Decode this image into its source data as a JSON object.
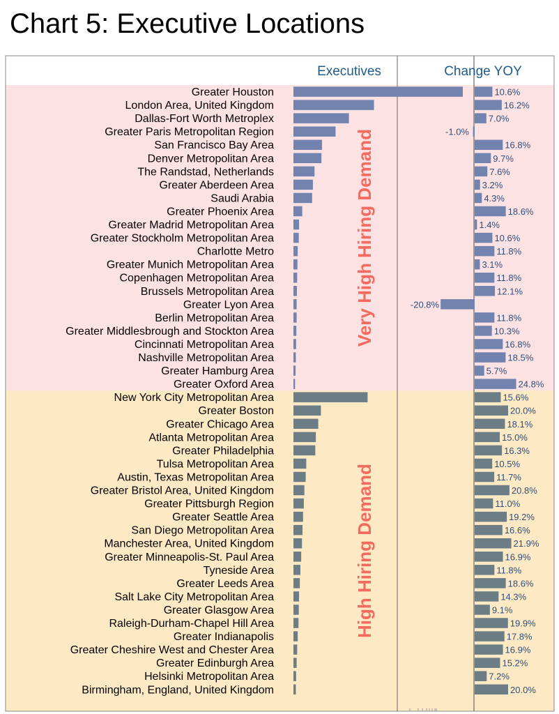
{
  "title": "Chart 5: Executive Locations",
  "chart_data": {
    "type": "bar",
    "title": "Chart 5: Executive Locations",
    "panels": [
      "Executives",
      "Change YOY"
    ],
    "colors": {
      "very_high_bg": "#fde2e4",
      "high_bg": "#fde9c4",
      "very_high_bar": "#7383b0",
      "high_bar": "#6c7d86",
      "group_label": "#f26b5e",
      "header": "#1f5a8a"
    },
    "groups": [
      {
        "name": "Very High Hiring Demand",
        "categories": [
          "Greater Houston",
          "London Area, United Kingdom",
          "Dallas-Fort Worth Metroplex",
          "Greater Paris Metropolitan Region",
          "San Francisco Bay Area",
          "Denver Metropolitan Area",
          "The Randstad, Netherlands",
          "Greater Aberdeen Area",
          "Saudi Arabia",
          "Greater Phoenix Area",
          "Greater Madrid Metropolitan Area",
          "Greater Stockholm Metropolitan Area",
          "Charlotte Metro",
          "Greater Munich Metropolitan Area",
          "Copenhagen Metropolitan Area",
          "Brussels Metropolitan Area",
          "Greater Lyon Area",
          "Berlin Metropolitan Area",
          "Greater Middlesbrough and Stockton Area",
          "Cincinnati Metropolitan Area",
          "Nashville Metropolitan Area",
          "Greater Hamburg Area",
          "Greater Oxford Area"
        ],
        "executives": [
          635,
          302,
          208,
          158,
          107,
          105,
          79,
          73,
          70,
          33,
          21,
          20,
          16,
          15,
          14,
          13,
          12,
          12,
          11,
          10,
          9,
          8,
          6
        ],
        "change_yoy": [
          10.6,
          16.2,
          7.0,
          -1.0,
          16.8,
          9.7,
          7.6,
          3.2,
          4.3,
          18.6,
          1.4,
          10.6,
          11.8,
          3.1,
          11.8,
          12.1,
          -20.8,
          11.8,
          10.3,
          16.8,
          18.5,
          5.7,
          24.8
        ],
        "change_labels": [
          "10.6%",
          "16.2%",
          "7.0%",
          "-1.0%",
          "16.8%",
          "9.7%",
          "7.6%",
          "3.2%",
          "4.3%",
          "18.6%",
          "1.4%",
          "10.6%",
          "11.8%",
          "3.1%",
          "11.8%",
          "12.1%",
          "-20.8%",
          "11.8%",
          "10.3%",
          "16.8%",
          "18.5%",
          "5.7%",
          "24.8%"
        ]
      },
      {
        "name": "High Hiring Demand",
        "categories": [
          "New York City Metropolitan Area",
          "Greater Boston",
          "Greater Chicago Area",
          "Atlanta Metropolitan Area",
          "Greater Philadelphia",
          "Tulsa Metropolitan Area",
          "Austin, Texas Metropolitan Area",
          "Greater Bristol Area, United Kingdom",
          "Greater Pittsburgh Region",
          "Greater Seattle Area",
          "San Diego Metropolitan Area",
          "Manchester Area, United Kingdom",
          "Greater Minneapolis-St. Paul Area",
          "Tyneside Area",
          "Greater Leeds Area",
          "Salt Lake City Metropolitan Area",
          "Greater Glasgow Area",
          "Raleigh-Durham-Chapel Hill Area",
          "Greater Indianapolis",
          "Greater Cheshire West and Chester Area",
          "Greater Edinburgh Area",
          "Helsinki Metropolitan Area",
          "Birmingham, England, United Kingdom"
        ],
        "executives": [
          278,
          103,
          93,
          84,
          82,
          48,
          46,
          41,
          39,
          36,
          34,
          32,
          29,
          26,
          24,
          21,
          20,
          19,
          16,
          14,
          12,
          10,
          9
        ],
        "change_yoy": [
          15.6,
          20.0,
          18.1,
          15.0,
          16.3,
          10.5,
          11.7,
          20.8,
          11.0,
          19.2,
          16.6,
          21.9,
          16.9,
          11.8,
          18.6,
          14.3,
          9.1,
          19.9,
          17.8,
          16.9,
          15.2,
          7.2,
          20.0
        ],
        "change_labels": [
          "15.6%",
          "20.0%",
          "18.1%",
          "15.0%",
          "16.3%",
          "10.5%",
          "11.7%",
          "20.8%",
          "11.0%",
          "19.2%",
          "16.6%",
          "21.9%",
          "16.9%",
          "11.8%",
          "18.6%",
          "14.3%",
          "9.1%",
          "19.9%",
          "17.8%",
          "16.9%",
          "15.2%",
          "7.2%",
          "20.0%"
        ]
      }
    ]
  }
}
